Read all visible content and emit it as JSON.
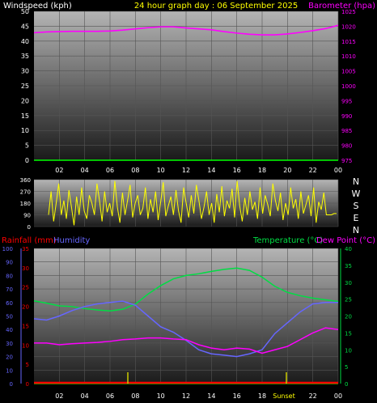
{
  "header": {
    "wind_label": "Windspeed (kph)",
    "title": "24 hour graph day : 06 September 2025",
    "baro_label": "Barometer (hpa)"
  },
  "bottom_labels": {
    "rainfall": "Rainfall (mm)",
    "humidity": "Humidity",
    "temperature": "Temperature (°C)",
    "dewpoint": "Dew Point (°C)",
    "sunrise": "Sunrise",
    "sunset": "Sunset"
  },
  "colors": {
    "wind": "#ffffff",
    "title": "#ffff00",
    "barometer": "#ff00ff",
    "direction": "#ffff00",
    "rainfall": "#ff0000",
    "humidity": "#6666ff",
    "temperature": "#00dd44",
    "dewpoint": "#ff00ff",
    "daxis": "#ffffff",
    "xgrid": "#00ff00"
  },
  "chart_data": [
    {
      "type": "line",
      "x_ticks": [
        "02",
        "04",
        "06",
        "08",
        "10",
        "12",
        "14",
        "16",
        "18",
        "20",
        "22",
        "00"
      ],
      "left_axis": {
        "label": "Windspeed (kph)",
        "ticks": [
          0,
          5,
          10,
          15,
          20,
          25,
          30,
          35,
          40,
          45,
          50
        ],
        "range": [
          0,
          50
        ]
      },
      "right_axis": {
        "label": "Barometer (hpa)",
        "ticks": [
          975,
          980,
          985,
          990,
          995,
          1000,
          1005,
          1010,
          1015,
          1020,
          1025
        ],
        "range": [
          975,
          1025
        ]
      },
      "series": [
        {
          "name": "Barometer (hpa)",
          "axis": "right",
          "x": [
            0,
            1,
            2,
            3,
            4,
            5,
            6,
            7,
            8,
            9,
            10,
            11,
            12,
            13,
            14,
            15,
            16,
            17,
            18,
            19,
            20,
            21,
            22,
            23,
            24
          ],
          "values": [
            1017.8,
            1018.1,
            1018.2,
            1018.3,
            1018.3,
            1018.3,
            1018.4,
            1018.7,
            1019.1,
            1019.5,
            1019.8,
            1019.8,
            1019.4,
            1019.1,
            1018.8,
            1018.2,
            1017.7,
            1017.3,
            1017.1,
            1017.1,
            1017.4,
            1017.9,
            1018.5,
            1019.2,
            1020.3
          ]
        }
      ]
    },
    {
      "type": "line",
      "y_axis": {
        "ticks": [
          0,
          90,
          180,
          270,
          360
        ],
        "range": [
          0,
          360
        ]
      },
      "direction_labels": [
        "N",
        "W",
        "S",
        "E",
        "N"
      ],
      "series": [
        {
          "name": "Wind direction",
          "values": [
            90,
            270,
            40,
            180,
            330,
            90,
            200,
            60,
            280,
            150,
            10,
            230,
            90,
            300,
            120,
            60,
            240,
            180,
            90,
            330,
            200,
            40,
            270,
            110,
            180,
            80,
            350,
            150,
            30,
            260,
            90,
            200,
            320,
            70,
            180,
            240,
            90,
            140,
            300,
            60,
            210,
            110,
            270,
            50,
            190,
            340,
            80,
            160,
            230,
            90,
            280,
            120,
            30,
            300,
            180,
            70,
            240,
            100,
            320,
            200,
            60,
            150,
            270,
            90,
            180,
            30,
            250,
            110,
            310,
            80,
            200,
            140,
            290,
            70,
            350,
            160,
            40,
            220,
            90,
            270,
            130,
            190,
            60,
            300,
            100,
            240,
            170,
            80,
            330,
            200,
            120,
            260,
            50,
            180,
            90,
            300,
            140,
            210,
            60,
            270,
            100,
            170,
            240,
            80,
            300,
            30,
            190,
            130,
            260,
            90,
            90,
            90,
            100,
            100
          ]
        }
      ]
    },
    {
      "type": "line",
      "x_ticks": [
        "02",
        "04",
        "06",
        "08",
        "10",
        "12",
        "14",
        "16",
        "18",
        "20",
        "22",
        "00"
      ],
      "left_axes": [
        {
          "label": "Humidity",
          "ticks": [
            0,
            10,
            20,
            30,
            40,
            50,
            60,
            70,
            80,
            90,
            100
          ],
          "range": [
            0,
            100
          ]
        },
        {
          "label": "Rainfall (mm)",
          "ticks": [
            0,
            5,
            10,
            15,
            20,
            25,
            30,
            35
          ],
          "range": [
            0,
            35
          ]
        }
      ],
      "right_axis": {
        "label": "Temperature (°C)",
        "ticks": [
          0,
          5,
          10,
          15,
          20,
          25,
          30,
          35,
          40
        ],
        "range": [
          0,
          40
        ]
      },
      "series": [
        {
          "name": "Temperature (°C)",
          "x": [
            0,
            1,
            2,
            3,
            4,
            5,
            6,
            7,
            8,
            9,
            10,
            11,
            12,
            13,
            14,
            15,
            16,
            17,
            18,
            19,
            20,
            21,
            22,
            23,
            24
          ],
          "values": [
            24.5,
            23.8,
            23,
            22.8,
            22.2,
            21.8,
            21.5,
            22,
            23.5,
            26.5,
            29,
            31,
            32,
            32.5,
            33.2,
            33.8,
            34.2,
            33.5,
            31.5,
            28.8,
            27,
            26,
            25.3,
            24.8,
            24.3
          ]
        },
        {
          "name": "Humidity",
          "x": [
            0,
            1,
            2,
            3,
            4,
            5,
            6,
            7,
            8,
            9,
            10,
            11,
            12,
            13,
            14,
            15,
            16,
            17,
            18,
            19,
            20,
            21,
            22,
            23,
            24
          ],
          "values": [
            48,
            47,
            50,
            54,
            57,
            59,
            60,
            61,
            58,
            50,
            42,
            38,
            32,
            25,
            22,
            21,
            20,
            22,
            25,
            37,
            45,
            53,
            59,
            60,
            60
          ]
        },
        {
          "name": "Dew Point (°C)",
          "x": [
            0,
            1,
            2,
            3,
            4,
            5,
            6,
            7,
            8,
            9,
            10,
            11,
            12,
            13,
            14,
            15,
            16,
            17,
            18,
            19,
            20,
            21,
            22,
            23,
            24
          ],
          "values": [
            12,
            12,
            11.5,
            11.8,
            12,
            12.2,
            12.5,
            13,
            13.2,
            13.5,
            13.5,
            13.2,
            13,
            11.5,
            10.5,
            10,
            10.5,
            10.2,
            9,
            10,
            11,
            13,
            15,
            16.5,
            16
          ]
        },
        {
          "name": "Rainfall (mm)",
          "values": [
            0
          ]
        }
      ]
    }
  ]
}
